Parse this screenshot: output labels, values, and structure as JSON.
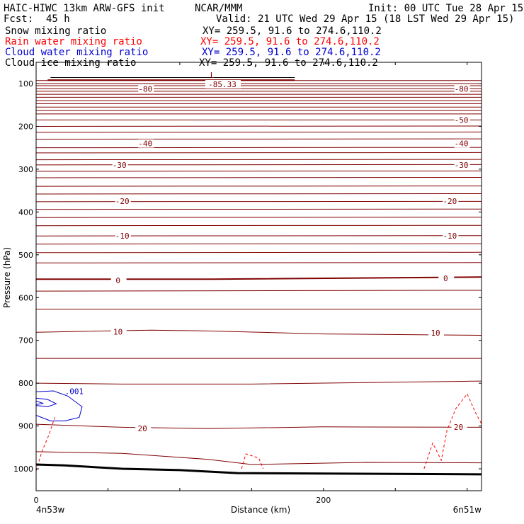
{
  "header": {
    "title_left": "HAIC-HIWC 13km ARW-GFS init",
    "title_center": "NCAR/MMM",
    "init": "Init: 00 UTC Tue 28 Apr 15",
    "fcst_label": "Fcst:",
    "fcst_value": "45 h",
    "valid": "Valid: 21 UTC Wed 29 Apr 15 (18 LST Wed 29 Apr 15)"
  },
  "fields": [
    {
      "name": "Snow mixing ratio",
      "xy": "XY= 259.5, 91.6 to 274.6,110.2",
      "color": "#000000"
    },
    {
      "name": "Rain water mixing ratio",
      "xy": "XY= 259.5, 91.6 to 274.6,110.2",
      "color": "#ff0000"
    },
    {
      "name": "Cloud water mixing ratio",
      "xy": "XY= 259.5, 91.6 to 274.6,110.2",
      "color": "#0000cc"
    },
    {
      "name": "Cloud ice mixing ratio",
      "xy": "XY= 259.5, 91.6 to 274.6,110.2",
      "color": "#000000"
    }
  ],
  "chart_data": {
    "type": "contour",
    "ylabel": "Pressure (hPa)",
    "xlabel": "Distance (km)",
    "x_ticks": [
      0,
      200
    ],
    "y_ticks": [
      100,
      200,
      300,
      400,
      500,
      600,
      700,
      800,
      900,
      1000
    ],
    "xlim": [
      0,
      310
    ],
    "ylim_pressure": [
      1050,
      50
    ],
    "corner_labels": {
      "left": "4n53w",
      "right": "6n51w"
    },
    "low_center": {
      "symbol": "L",
      "value": "-85.33"
    },
    "temperature_labels": [
      {
        "text": "-80",
        "x": 76,
        "p": 112
      },
      {
        "text": "-80",
        "x": 296,
        "p": 112
      },
      {
        "text": "-50",
        "x": 296,
        "p": 185
      },
      {
        "text": "-40",
        "x": 76,
        "p": 240
      },
      {
        "text": "-40",
        "x": 296,
        "p": 240
      },
      {
        "text": "-30",
        "x": 58,
        "p": 290
      },
      {
        "text": "-30",
        "x": 296,
        "p": 290
      },
      {
        "text": "-20",
        "x": 60,
        "p": 375
      },
      {
        "text": "-20",
        "x": 288,
        "p": 375
      },
      {
        "text": "-10",
        "x": 60,
        "p": 456
      },
      {
        "text": "-10",
        "x": 288,
        "p": 456
      },
      {
        "text": "0",
        "x": 57,
        "p": 560
      },
      {
        "text": "0",
        "x": 285,
        "p": 555
      },
      {
        "text": "10",
        "x": 57,
        "p": 680
      },
      {
        "text": "10",
        "x": 278,
        "p": 682
      },
      {
        "text": "20",
        "x": 74,
        "p": 906
      },
      {
        "text": "20",
        "x": 294,
        "p": 902
      }
    ],
    "cloud_water_label": ".001",
    "notes": "Contours of temperature (dark red) vs distance and pressure; rain water (red dashed) and cloud water (blue) near surface; terrain line (black) near 1000 hPa."
  }
}
